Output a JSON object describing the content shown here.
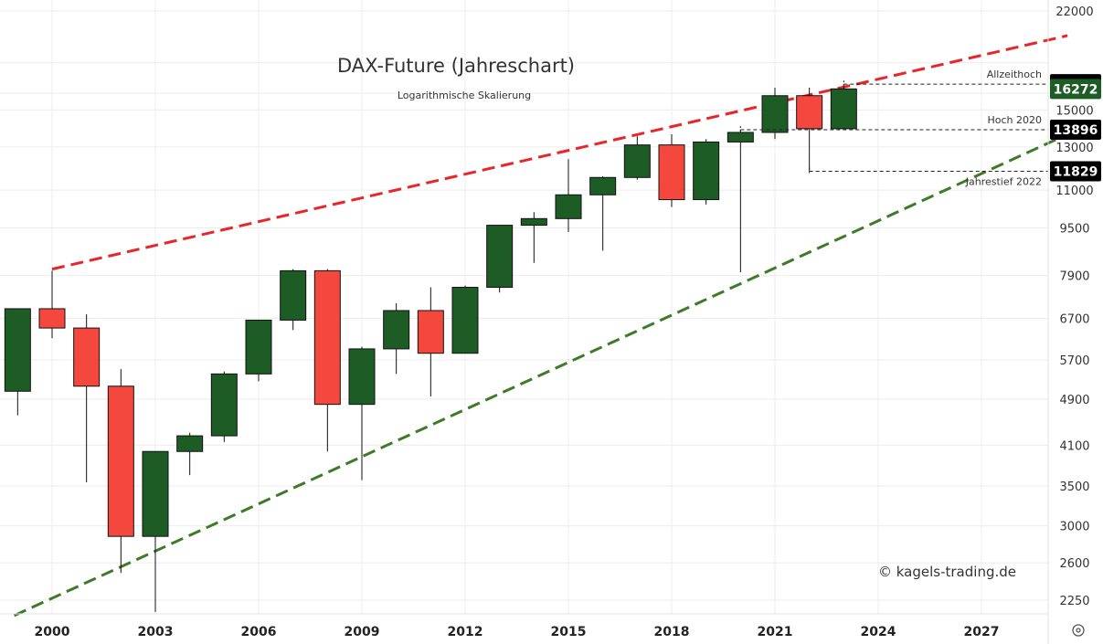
{
  "chart_data": {
    "type": "candlestick",
    "title": "DAX-Future (Jahreschart)",
    "subtitle": "Logarithmische Skalierung",
    "y_scale": "log",
    "ylim": [
      2050,
      22000
    ],
    "xlim": [
      1998.5,
      2029.5
    ],
    "y_ticks": [
      2250,
      2600,
      3000,
      3500,
      4100,
      4900,
      5700,
      6700,
      7900,
      9500,
      11000,
      13000,
      15000,
      22000
    ],
    "x_ticks": [
      "2000",
      "2003",
      "2006",
      "2009",
      "2012",
      "2015",
      "2018",
      "2021",
      "2024",
      "2027"
    ],
    "grid": true,
    "colors": {
      "up": "#1e5c26",
      "down": "#f4473e",
      "upper_channel": "#e8262a",
      "lower_channel": "#3f7a28",
      "badge_dark": "#000000",
      "badge_green": "#1e5c26"
    },
    "candles": [
      {
        "year": 1999,
        "open": 5050,
        "high": 6950,
        "low": 4600,
        "close": 6950
      },
      {
        "year": 2000,
        "open": 6950,
        "high": 8050,
        "low": 6200,
        "close": 6450
      },
      {
        "year": 2001,
        "open": 6450,
        "high": 6800,
        "low": 3550,
        "close": 5150
      },
      {
        "year": 2002,
        "open": 5150,
        "high": 5500,
        "low": 2500,
        "close": 2880
      },
      {
        "year": 2003,
        "open": 2880,
        "high": 4000,
        "low": 2150,
        "close": 4000
      },
      {
        "year": 2004,
        "open": 4000,
        "high": 4300,
        "low": 3650,
        "close": 4250
      },
      {
        "year": 2005,
        "open": 4250,
        "high": 5450,
        "low": 4150,
        "close": 5400
      },
      {
        "year": 2006,
        "open": 5400,
        "high": 6650,
        "low": 5250,
        "close": 6650
      },
      {
        "year": 2007,
        "open": 6650,
        "high": 8100,
        "low": 6400,
        "close": 8050
      },
      {
        "year": 2008,
        "open": 8050,
        "high": 8100,
        "low": 4000,
        "close": 4800
      },
      {
        "year": 2009,
        "open": 4800,
        "high": 6000,
        "low": 3580,
        "close": 5950
      },
      {
        "year": 2010,
        "open": 5950,
        "high": 7100,
        "low": 5400,
        "close": 6900
      },
      {
        "year": 2011,
        "open": 6900,
        "high": 7550,
        "low": 4950,
        "close": 5850
      },
      {
        "year": 2012,
        "open": 5850,
        "high": 7600,
        "low": 5850,
        "close": 7550
      },
      {
        "year": 2013,
        "open": 7550,
        "high": 9600,
        "low": 7400,
        "close": 9600
      },
      {
        "year": 2014,
        "open": 9600,
        "high": 10100,
        "low": 8300,
        "close": 9850
      },
      {
        "year": 2015,
        "open": 9850,
        "high": 12400,
        "low": 9350,
        "close": 10800
      },
      {
        "year": 2016,
        "open": 10800,
        "high": 11600,
        "low": 8700,
        "close": 11550
      },
      {
        "year": 2017,
        "open": 11550,
        "high": 13550,
        "low": 11450,
        "close": 13100
      },
      {
        "year": 2018,
        "open": 13100,
        "high": 13650,
        "low": 10300,
        "close": 10600
      },
      {
        "year": 2019,
        "open": 10600,
        "high": 13400,
        "low": 10400,
        "close": 13250
      },
      {
        "year": 2020,
        "open": 13250,
        "high": 13900,
        "low": 8000,
        "close": 13750
      },
      {
        "year": 2021,
        "open": 13750,
        "high": 16350,
        "low": 13400,
        "close": 15850
      },
      {
        "year": 2022,
        "open": 15850,
        "high": 16350,
        "low": 11829,
        "close": 13950
      },
      {
        "year": 2023,
        "open": 13950,
        "high": 16572,
        "low": 13900,
        "close": 16272
      }
    ],
    "channel_lines": [
      {
        "style": "dashed",
        "color": "#e8262a",
        "start": {
          "x": 2000.0,
          "y": 8100
        },
        "end": {
          "x": 2029.5,
          "y": 20000
        }
      },
      {
        "style": "dashed",
        "color": "#3f7a28",
        "start": {
          "x": 1998.9,
          "y": 2120
        },
        "end": {
          "x": 2029.5,
          "y": 13650
        }
      }
    ],
    "levels": [
      {
        "label": "Allzeithoch",
        "value": 16572,
        "badge": "16572",
        "badge_color": "#000000",
        "from_year": 2023
      },
      {
        "label": "",
        "value": 16272,
        "badge": "16272",
        "badge_color": "#1e5c26",
        "from_year": null
      },
      {
        "label": "Hoch 2020",
        "value": 13896,
        "badge": "13896",
        "badge_color": "#000000",
        "from_year": 2020
      },
      {
        "label": "Jahrestief 2022",
        "value": 11829,
        "badge": "11829",
        "badge_color": "#000000",
        "from_year": 2022
      }
    ],
    "copyright": "© kagels-trading.de"
  }
}
